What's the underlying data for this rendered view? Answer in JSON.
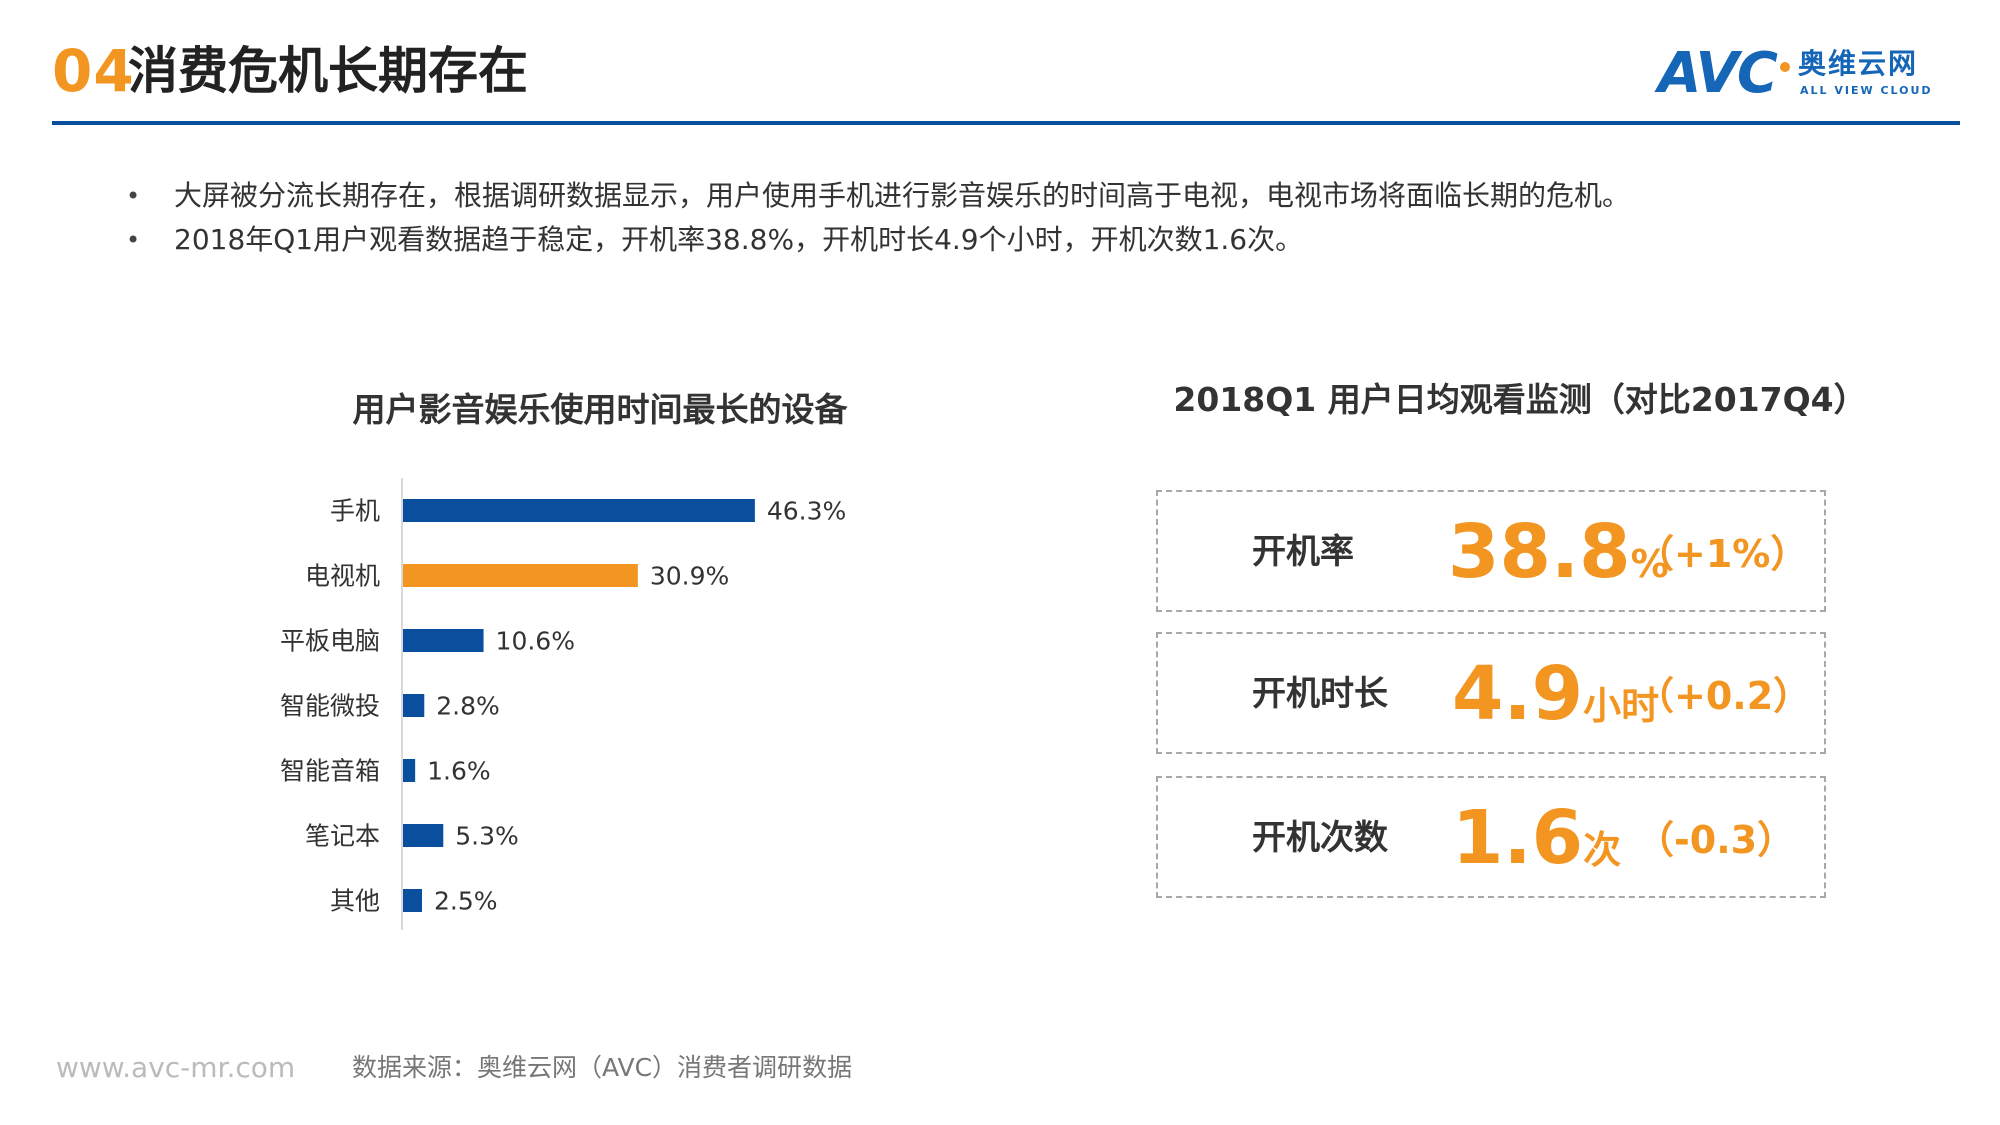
{
  "header": {
    "number": "04",
    "title": "消费危机长期存在"
  },
  "logo": {
    "brand": "AVC",
    "name_cn": "奥维云网",
    "name_en": "ALL VIEW CLOUD"
  },
  "bullets": [
    "大屏被分流长期存在，根据调研数据显示，用户使用手机进行影音娱乐的时间高于电视，电视市场将面临长期的危机。",
    "2018年Q1用户观看数据趋于稳定，开机率38.8%，开机时长4.9个小时，开机次数1.6次。"
  ],
  "chart_data": {
    "type": "bar",
    "orientation": "horizontal",
    "title": "用户影音娱乐使用时间最长的设备",
    "categories": [
      "手机",
      "电视机",
      "平板电脑",
      "智能微投",
      "智能音箱",
      "笔记本",
      "其他"
    ],
    "values": [
      46.3,
      30.9,
      10.6,
      2.8,
      1.6,
      5.3,
      2.5
    ],
    "value_labels": [
      "46.3%",
      "30.9%",
      "10.6%",
      "2.8%",
      "1.6%",
      "5.3%",
      "2.5%"
    ],
    "highlight_index": 1,
    "colors": {
      "default": "#0A4F9E",
      "highlight": "#F29521"
    },
    "xlim": [
      0,
      50
    ]
  },
  "monitor": {
    "title": "2018Q1 用户日均观看监测（对比2017Q4）",
    "items": [
      {
        "label": "开机率",
        "value": "38.8",
        "unit": "%",
        "change": "（+1%）"
      },
      {
        "label": "开机时长",
        "value": "4.9",
        "unit": "小时",
        "change": "（+0.2）"
      },
      {
        "label": "开机次数",
        "value": "1.6",
        "unit": "次",
        "change": "（-0.3）"
      }
    ]
  },
  "footer": {
    "url": "www.avc-mr.com",
    "source": "数据来源：奥维云网（AVC）消费者调研数据"
  },
  "colors": {
    "accent": "#F29521",
    "brand_blue": "#0A4F9E"
  }
}
